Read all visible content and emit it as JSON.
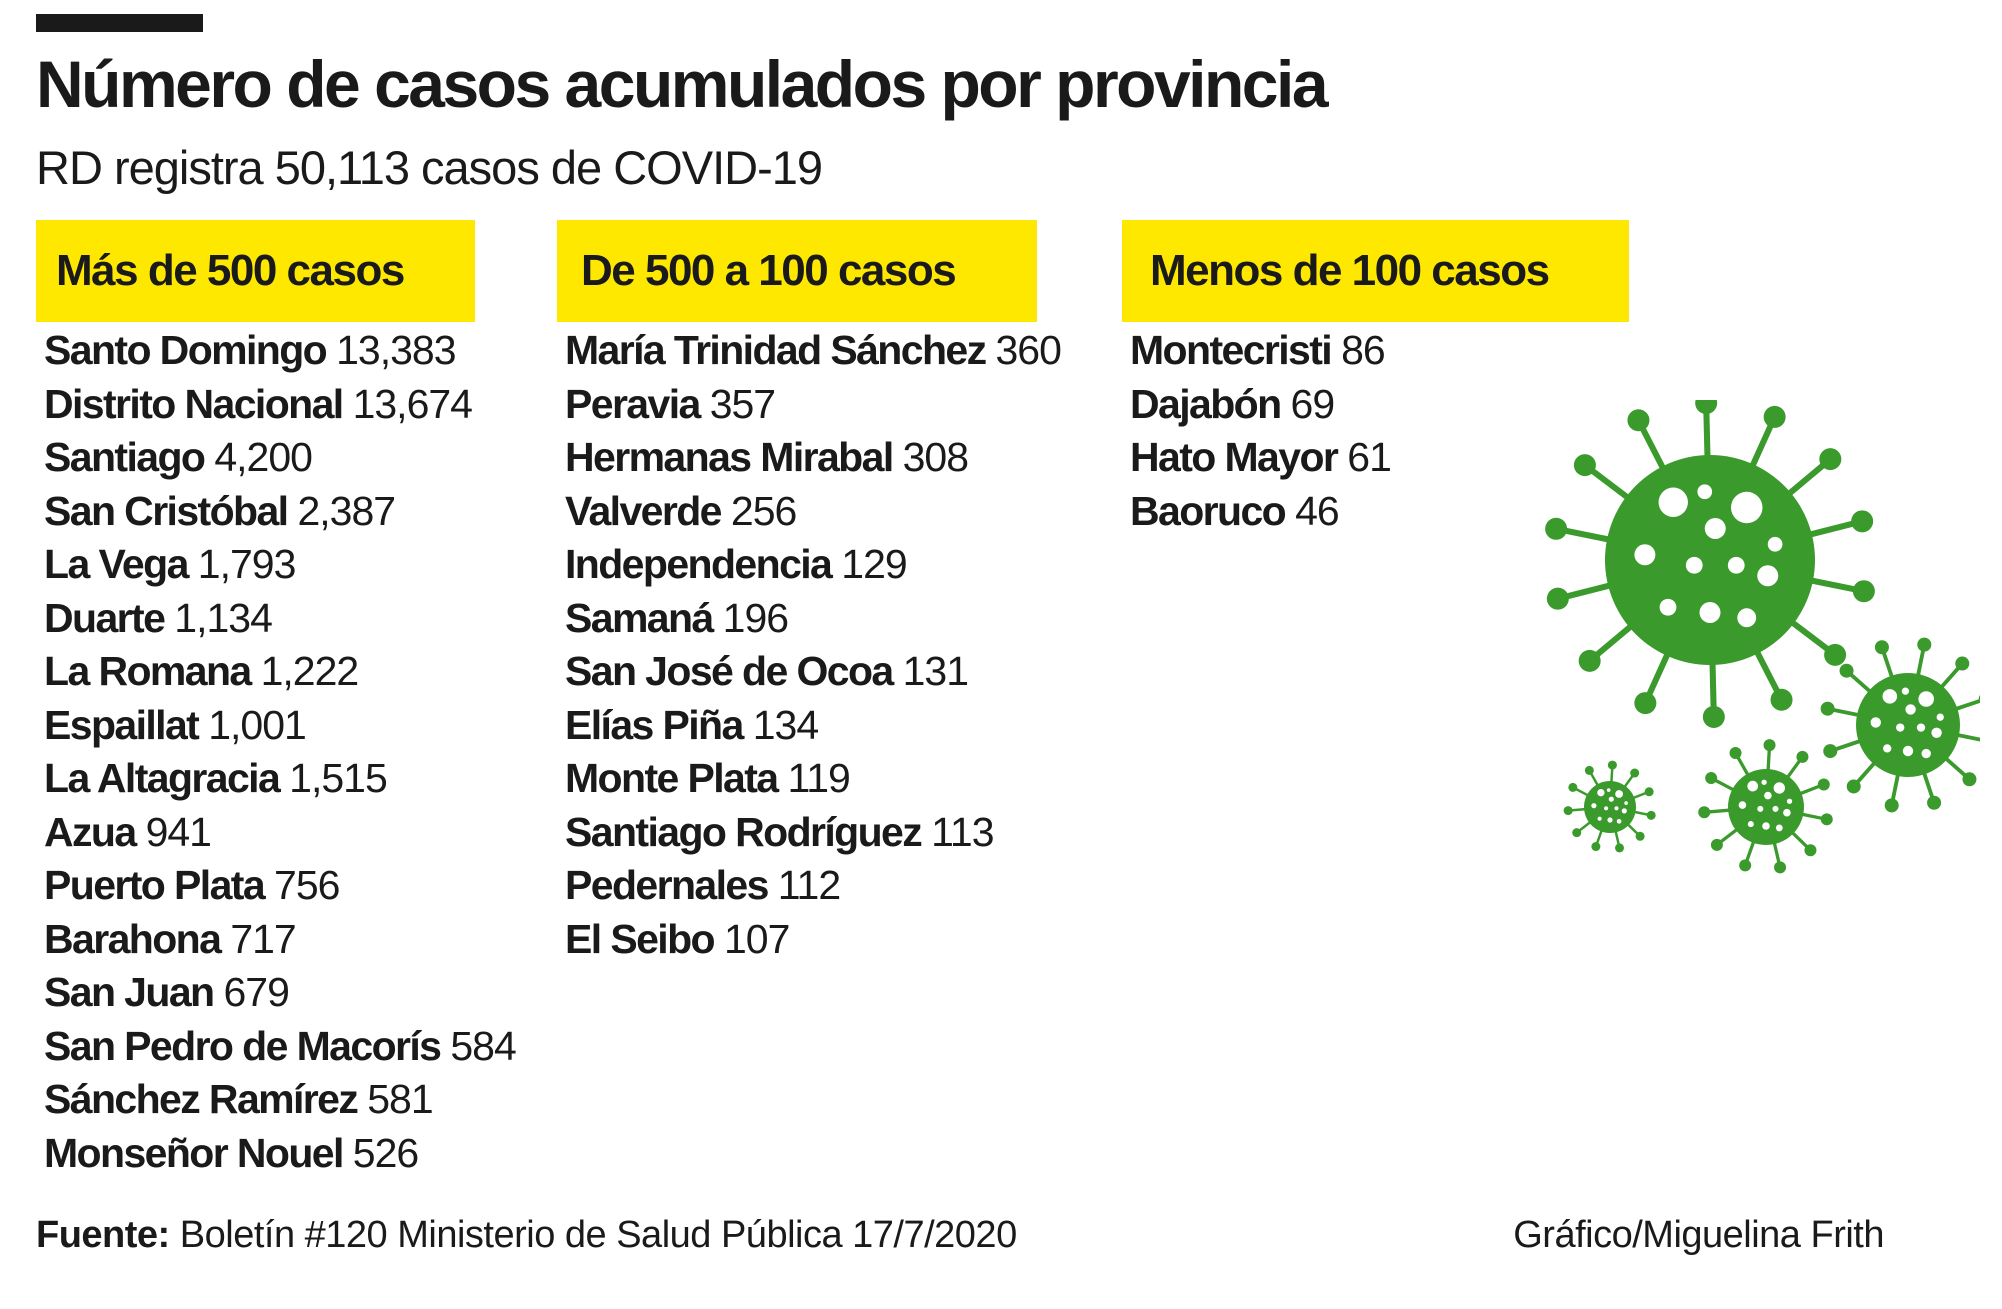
{
  "title": "Número de casos acumulados por provincia",
  "subtitle": "RD registra 50,113 casos de COVID-19",
  "categories": [
    {
      "header": "Más de 500 casos",
      "rows": [
        {
          "name": "Santo Domingo",
          "cases": "13,383"
        },
        {
          "name": "Distrito Nacional",
          "cases": "13,674"
        },
        {
          "name": "Santiago",
          "cases": "4,200"
        },
        {
          "name": "San Cristóbal",
          "cases": "2,387"
        },
        {
          "name": "La Vega",
          "cases": "1,793"
        },
        {
          "name": "Duarte",
          "cases": "1,134"
        },
        {
          "name": "La Romana",
          "cases": "1,222"
        },
        {
          "name": "Espaillat",
          "cases": "1,001"
        },
        {
          "name": "La Altagracia",
          "cases": "1,515"
        },
        {
          "name": "Azua",
          "cases": "941"
        },
        {
          "name": "Puerto Plata",
          "cases": "756"
        },
        {
          "name": "Barahona",
          "cases": "717"
        },
        {
          "name": "San Juan",
          "cases": "679"
        },
        {
          "name": "San Pedro de Macorís",
          "cases": "584"
        },
        {
          "name": "Sánchez Ramírez",
          "cases": "581"
        },
        {
          "name": "Monseñor Nouel",
          "cases": "526"
        }
      ]
    },
    {
      "header": "De 500 a 100 casos",
      "rows": [
        {
          "name": "María Trinidad Sánchez",
          "cases": "360"
        },
        {
          "name": "Peravia",
          "cases": "357"
        },
        {
          "name": "Hermanas Mirabal",
          "cases": "308"
        },
        {
          "name": "Valverde",
          "cases": "256"
        },
        {
          "name": "Independencia",
          "cases": "129"
        },
        {
          "name": "Samaná",
          "cases": "196"
        },
        {
          "name": "San José de Ocoa",
          "cases": "131"
        },
        {
          "name": "Elías Piña",
          "cases": "134"
        },
        {
          "name": "Monte Plata",
          "cases": "119"
        },
        {
          "name": "Santiago Rodríguez",
          "cases": "113"
        },
        {
          "name": "Pedernales",
          "cases": "112"
        },
        {
          "name": "El Seibo",
          "cases": "107"
        }
      ]
    },
    {
      "header": "Menos de 100 casos",
      "rows": [
        {
          "name": "Montecristi",
          "cases": "86"
        },
        {
          "name": "Dajabón",
          "cases": "69"
        },
        {
          "name": "Hato Mayor",
          "cases": "61"
        },
        {
          "name": "Baoruco",
          "cases": "46"
        }
      ]
    }
  ],
  "footer": {
    "source_label": "Fuente:",
    "source_text": "Boletín #120 Ministerio de Salud Pública 17/7/2020",
    "credit": "Gráfico/Miguelina Frith"
  },
  "colors": {
    "header_bg": "#ffe800",
    "virus": "#3a9a2c",
    "text": "#1a1a1a"
  },
  "illustration": "coronavirus-icons"
}
